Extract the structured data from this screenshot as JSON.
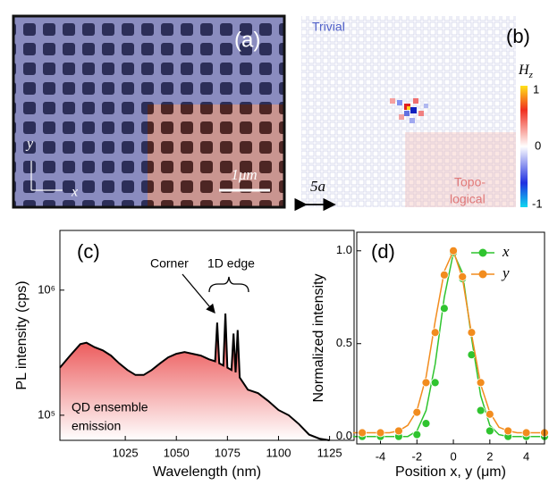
{
  "images": {
    "a": {
      "label": "(a)",
      "scale_bar": "1μm",
      "axis_y": "y",
      "axis_x": "x"
    },
    "b": {
      "label": "(b)",
      "trivial": "Trivial",
      "topological": [
        "Topo-",
        "logical"
      ],
      "colorbar_title": "H",
      "colorbar_title_sub": "z",
      "colorbar_ticks": [
        1,
        0,
        -1
      ],
      "scale": "5a"
    }
  },
  "chart_data": [
    {
      "type": "line",
      "panel_label": "(c)",
      "xlabel": "Wavelength (nm)",
      "ylabel": "PL intensity (cps)",
      "x": [
        993,
        998,
        1003,
        1006,
        1010,
        1014,
        1018,
        1022,
        1026,
        1030,
        1034,
        1038,
        1042,
        1046,
        1050,
        1054,
        1058,
        1062,
        1066,
        1069,
        1070,
        1071,
        1073,
        1074,
        1075,
        1077,
        1078,
        1079,
        1080,
        1081,
        1085,
        1090,
        1095,
        1100,
        1105,
        1110,
        1115,
        1120,
        1125
      ],
      "values": [
        240000,
        300000,
        370000,
        380000,
        350000,
        330000,
        300000,
        260000,
        230000,
        210000,
        210000,
        230000,
        260000,
        290000,
        310000,
        320000,
        310000,
        300000,
        280000,
        270000,
        550000,
        260000,
        250000,
        650000,
        240000,
        230000,
        450000,
        220000,
        480000,
        200000,
        160000,
        150000,
        130000,
        110000,
        100000,
        85000,
        70000,
        65000,
        63000
      ],
      "color": "#000000",
      "fill_color": "#e8393a",
      "xlim": [
        993,
        1137
      ],
      "ylim": [
        63000,
        3000000
      ],
      "yscale": "log",
      "xticks": [
        1025,
        1050,
        1075,
        1100,
        1125
      ],
      "yticks": [
        {
          "value": 100000,
          "label": "10⁵"
        },
        {
          "value": 1000000,
          "label": "10⁶"
        }
      ],
      "annotations": {
        "corner": "Corner",
        "edge": "1D edge",
        "ensemble": [
          "QD ensemble",
          "emission"
        ]
      }
    },
    {
      "type": "scatter",
      "panel_label": "(d)",
      "xlabel": "Position x, y (μm)",
      "ylabel": "Normalized intensity",
      "x": [
        -5,
        -4,
        -3,
        -2,
        -1.5,
        -1,
        -0.5,
        0,
        0.5,
        1,
        1.5,
        2,
        3,
        4,
        5
      ],
      "fit_x": [
        -5.5,
        -5,
        -4.5,
        -4,
        -3.5,
        -3,
        -2.5,
        -2,
        -1.5,
        -1,
        -0.5,
        0,
        0.5,
        1,
        1.5,
        2,
        2.5,
        3,
        3.5,
        4,
        4.5,
        5
      ],
      "series": [
        {
          "name": "x",
          "color": "#2fc42f",
          "values": [
            0,
            0,
            0,
            0.01,
            0.07,
            0.29,
            0.69,
            0.99,
            0.85,
            0.44,
            0.14,
            0.03,
            0,
            0,
            0
          ],
          "fit": [
            0,
            0,
            0,
            0,
            0,
            0,
            0,
            0.03,
            0.14,
            0.39,
            0.75,
            0.99,
            0.88,
            0.53,
            0.22,
            0.06,
            0.01,
            0,
            0,
            0,
            0,
            0
          ]
        },
        {
          "name": "y",
          "color": "#f28c1e",
          "values": [
            0.02,
            0.02,
            0.03,
            0.13,
            0.29,
            0.56,
            0.87,
            1.0,
            0.86,
            0.56,
            0.29,
            0.12,
            0.03,
            0.02,
            0.02
          ],
          "fit": [
            0.02,
            0.02,
            0.02,
            0.02,
            0.02,
            0.03,
            0.06,
            0.14,
            0.32,
            0.62,
            0.89,
            1.0,
            0.85,
            0.55,
            0.28,
            0.13,
            0.05,
            0.03,
            0.02,
            0.02,
            0.02,
            0.02
          ]
        }
      ],
      "xlim": [
        -5.3,
        5.0
      ],
      "ylim": [
        -0.04,
        1.1
      ],
      "xticks": [
        -4,
        -2,
        0,
        2,
        4
      ],
      "yticks": [
        {
          "value": 0,
          "label": "0.0"
        },
        {
          "value": 0.5,
          "label": "0.5"
        },
        {
          "value": 1,
          "label": "1.0"
        }
      ]
    }
  ]
}
